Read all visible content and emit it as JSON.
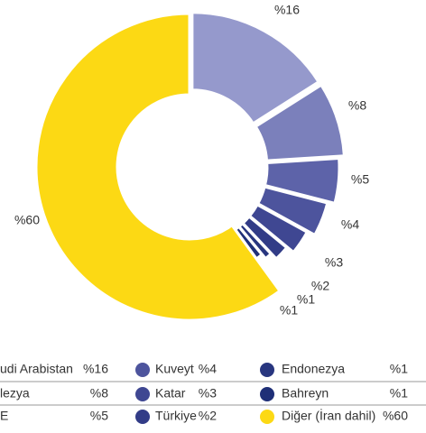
{
  "chart_data": {
    "type": "donut",
    "categories": [
      "udi Arabistan",
      "lezya",
      "E",
      "Kuveyt",
      "Katar",
      "Türkiye",
      "Endonezya",
      "Bahreyn",
      "Diğer (İran dahil)"
    ],
    "values": [
      16,
      8,
      5,
      4,
      3,
      2,
      1,
      1,
      60
    ],
    "value_labels": [
      "%16",
      "%8",
      "%5",
      "%4",
      "%3",
      "%2",
      "%1",
      "%1",
      "%60"
    ],
    "colors": [
      "#9599cc",
      "#7b80bb",
      "#5d63a9",
      "#4d549d",
      "#3f4792",
      "#323c87",
      "#28367f",
      "#1f2f77",
      "#fcd914"
    ],
    "legend": "bottom"
  }
}
